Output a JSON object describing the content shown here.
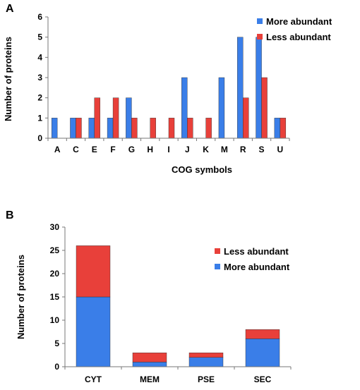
{
  "chart_data": [
    {
      "panel": "A",
      "type": "bar",
      "xlabel": "COG symbols",
      "ylabel": "Number of proteins",
      "ylim": [
        0,
        6
      ],
      "yticks": [
        "0",
        "1",
        "2",
        "3",
        "4",
        "5",
        "6"
      ],
      "categories": [
        "A",
        "C",
        "E",
        "F",
        "G",
        "H",
        "I",
        "J",
        "K",
        "M",
        "R",
        "S",
        "U"
      ],
      "series": [
        {
          "name": "More abundant",
          "color": "#3a7ee8",
          "values": [
            1,
            1,
            1,
            1,
            2,
            0,
            0,
            3,
            0,
            3,
            5,
            5,
            1
          ]
        },
        {
          "name": "Less abundant",
          "color": "#e8403a",
          "values": [
            0,
            1,
            2,
            2,
            1,
            1,
            1,
            1,
            1,
            0,
            2,
            3,
            1
          ]
        }
      ],
      "grid": false,
      "legend_position": "top-right"
    },
    {
      "panel": "B",
      "type": "bar",
      "stacked": true,
      "xlabel": "",
      "ylabel": "Number of proteins",
      "ylim": [
        0,
        30
      ],
      "yticks": [
        "0",
        "5",
        "10",
        "15",
        "20",
        "25",
        "30"
      ],
      "categories": [
        "CYT",
        "MEM",
        "PSE",
        "SEC"
      ],
      "series": [
        {
          "name": "More abundant",
          "color": "#3a7ee8",
          "values": [
            15,
            1,
            2,
            6
          ]
        },
        {
          "name": "Less abundant",
          "color": "#e8403a",
          "values": [
            11,
            2,
            1,
            2
          ]
        }
      ],
      "legend_order": [
        "Less abundant",
        "More abundant"
      ],
      "grid": false,
      "legend_position": "top-right"
    }
  ]
}
